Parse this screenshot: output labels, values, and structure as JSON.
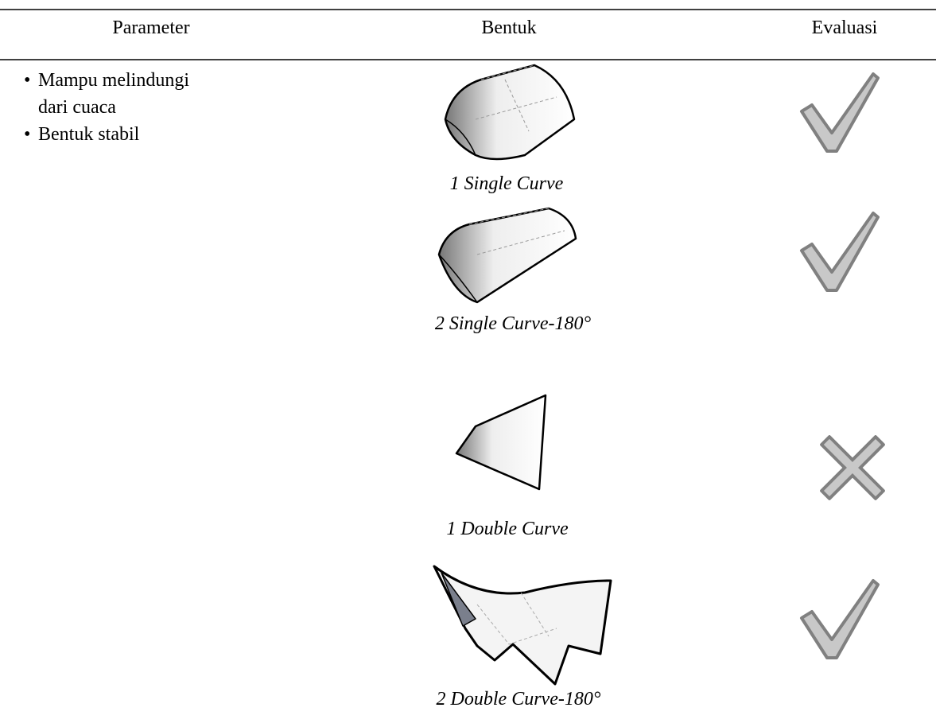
{
  "table": {
    "headers": [
      "Parameter",
      "Bentuk",
      "Evaluasi"
    ],
    "parameters": [
      "Mampu melindungi dari cuaca",
      "Bentuk stabil"
    ],
    "rows": [
      {
        "caption": "1 Single Curve"
      },
      {
        "caption": "2 Single Curve-180°"
      },
      {
        "caption": "1 Double Curve"
      },
      {
        "caption": "2 Double Curve-180°"
      }
    ]
  }
}
